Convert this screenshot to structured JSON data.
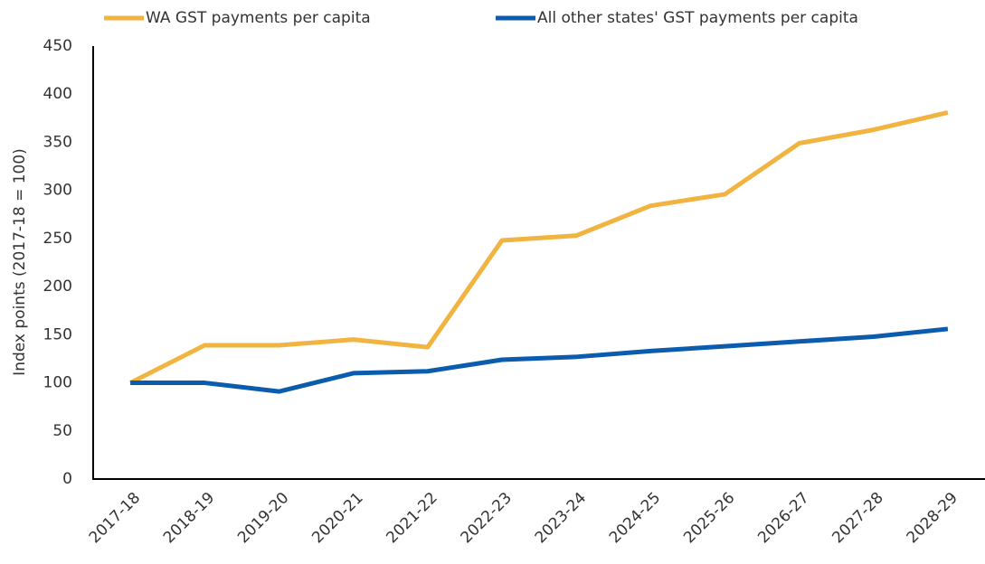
{
  "chart_data": {
    "type": "line",
    "y_label": "Index points (2017-18 = 100)",
    "categories": [
      "2017-18",
      "2018-19",
      "2019-20",
      "2020-21",
      "2021-22",
      "2022-23",
      "2023-24",
      "2024-25",
      "2025-26",
      "2026-27",
      "2027-28",
      "2028-29"
    ],
    "series": [
      {
        "name": "WA GST payments per capita",
        "color": "#f2b441",
        "values": [
          100,
          139,
          139,
          145,
          137,
          248,
          253,
          284,
          296,
          349,
          363,
          381
        ]
      },
      {
        "name": "All other states' GST payments per capita",
        "color": "#0b5cad",
        "values": [
          100,
          100,
          91,
          110,
          112,
          124,
          127,
          133,
          138,
          143,
          148,
          156
        ]
      }
    ],
    "ylim": [
      0,
      450
    ],
    "yticks": [
      0,
      50,
      100,
      150,
      200,
      250,
      300,
      350,
      400,
      450
    ],
    "grid": false,
    "legend": "top"
  }
}
